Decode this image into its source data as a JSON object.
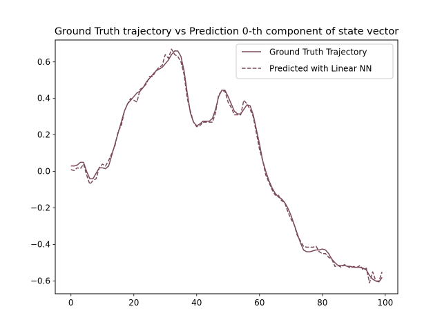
{
  "chart_data": {
    "type": "line",
    "title": "Ground Truth trajectory vs Prediction 0-th component of state vector",
    "xlabel": "",
    "ylabel": "",
    "xlim": [
      -5,
      104
    ],
    "ylim": [
      -0.67,
      0.72
    ],
    "x_ticks": [
      0,
      20,
      40,
      60,
      80,
      100
    ],
    "y_ticks": [
      -0.6,
      -0.4,
      -0.2,
      0.0,
      0.2,
      0.4,
      0.6
    ],
    "x_tick_labels": [
      "0",
      "20",
      "40",
      "60",
      "80",
      "100"
    ],
    "y_tick_labels": [
      "−0.6",
      "−0.4",
      "−0.2",
      "0.0",
      "0.2",
      "0.4",
      "0.6"
    ],
    "grid": false,
    "legend_position": "top-right",
    "series_color": "#7a4a5a",
    "series": [
      {
        "name": "Ground Truth Trajectory",
        "style": "solid",
        "x": [
          0,
          1,
          2,
          3,
          4,
          5,
          6,
          7,
          8,
          9,
          10,
          11,
          12,
          13,
          14,
          15,
          16,
          17,
          18,
          19,
          20,
          21,
          22,
          23,
          24,
          25,
          26,
          27,
          28,
          29,
          30,
          31,
          32,
          33,
          34,
          35,
          36,
          37,
          38,
          39,
          40,
          41,
          42,
          43,
          44,
          45,
          46,
          47,
          48,
          49,
          50,
          51,
          52,
          53,
          54,
          55,
          56,
          57,
          58,
          59,
          60,
          61,
          62,
          63,
          64,
          65,
          66,
          67,
          68,
          69,
          70,
          71,
          72,
          73,
          74,
          75,
          76,
          77,
          78,
          79,
          80,
          81,
          82,
          83,
          84,
          85,
          86,
          87,
          88,
          89,
          90,
          91,
          92,
          93,
          94,
          95,
          96,
          97,
          98,
          99
        ],
        "y": [
          0.03,
          0.03,
          0.035,
          0.05,
          0.05,
          0.0,
          -0.04,
          -0.04,
          -0.01,
          0.02,
          0.02,
          0.015,
          0.03,
          0.09,
          0.15,
          0.21,
          0.27,
          0.33,
          0.37,
          0.39,
          0.41,
          0.43,
          0.44,
          0.46,
          0.49,
          0.51,
          0.53,
          0.55,
          0.56,
          0.57,
          0.59,
          0.61,
          0.64,
          0.66,
          0.66,
          0.63,
          0.55,
          0.43,
          0.32,
          0.27,
          0.25,
          0.26,
          0.275,
          0.275,
          0.275,
          0.29,
          0.34,
          0.41,
          0.445,
          0.445,
          0.41,
          0.37,
          0.33,
          0.315,
          0.315,
          0.34,
          0.365,
          0.36,
          0.31,
          0.23,
          0.15,
          0.06,
          0.0,
          -0.05,
          -0.09,
          -0.12,
          -0.14,
          -0.15,
          -0.17,
          -0.2,
          -0.24,
          -0.29,
          -0.34,
          -0.39,
          -0.43,
          -0.44,
          -0.44,
          -0.435,
          -0.43,
          -0.43,
          -0.425,
          -0.43,
          -0.45,
          -0.48,
          -0.5,
          -0.515,
          -0.515,
          -0.515,
          -0.52,
          -0.52,
          -0.525,
          -0.525,
          -0.525,
          -0.53,
          -0.54,
          -0.57,
          -0.59,
          -0.6,
          -0.605,
          -0.58
        ]
      },
      {
        "name": "Predicted with Linear NN",
        "style": "dashed",
        "x": [
          0,
          1,
          2,
          3,
          4,
          5,
          6,
          7,
          8,
          9,
          10,
          11,
          12,
          13,
          14,
          15,
          16,
          17,
          18,
          19,
          20,
          21,
          22,
          23,
          24,
          25,
          26,
          27,
          28,
          29,
          30,
          31,
          32,
          33,
          34,
          35,
          36,
          37,
          38,
          39,
          40,
          41,
          42,
          43,
          44,
          45,
          46,
          47,
          48,
          49,
          50,
          51,
          52,
          53,
          54,
          55,
          56,
          57,
          58,
          59,
          60,
          61,
          62,
          63,
          64,
          65,
          66,
          67,
          68,
          69,
          70,
          71,
          72,
          73,
          74,
          75,
          76,
          77,
          78,
          79,
          80,
          81,
          82,
          83,
          84,
          85,
          86,
          87,
          88,
          89,
          90,
          91,
          92,
          93,
          94,
          95,
          96,
          97,
          98,
          99
        ],
        "y": [
          0.01,
          0.005,
          0.02,
          0.015,
          0.04,
          -0.02,
          -0.07,
          -0.05,
          -0.04,
          0.02,
          0.04,
          0.03,
          0.06,
          0.1,
          0.14,
          0.22,
          0.25,
          0.33,
          0.37,
          0.4,
          0.39,
          0.38,
          0.45,
          0.46,
          0.48,
          0.52,
          0.52,
          0.55,
          0.57,
          0.58,
          0.64,
          0.62,
          0.67,
          0.64,
          0.63,
          0.6,
          0.53,
          0.4,
          0.33,
          0.27,
          0.245,
          0.25,
          0.27,
          0.27,
          0.27,
          0.27,
          0.32,
          0.42,
          0.44,
          0.44,
          0.38,
          0.35,
          0.31,
          0.31,
          0.31,
          0.39,
          0.37,
          0.34,
          0.3,
          0.21,
          0.12,
          0.06,
          -0.02,
          -0.06,
          -0.1,
          -0.13,
          -0.13,
          -0.16,
          -0.17,
          -0.22,
          -0.26,
          -0.29,
          -0.35,
          -0.38,
          -0.41,
          -0.415,
          -0.415,
          -0.415,
          -0.41,
          -0.44,
          -0.45,
          -0.45,
          -0.47,
          -0.48,
          -0.52,
          -0.515,
          -0.525,
          -0.51,
          -0.52,
          -0.53,
          -0.52,
          -0.525,
          -0.515,
          -0.54,
          -0.53,
          -0.61,
          -0.55,
          -0.6,
          -0.6,
          -0.55
        ]
      }
    ]
  }
}
